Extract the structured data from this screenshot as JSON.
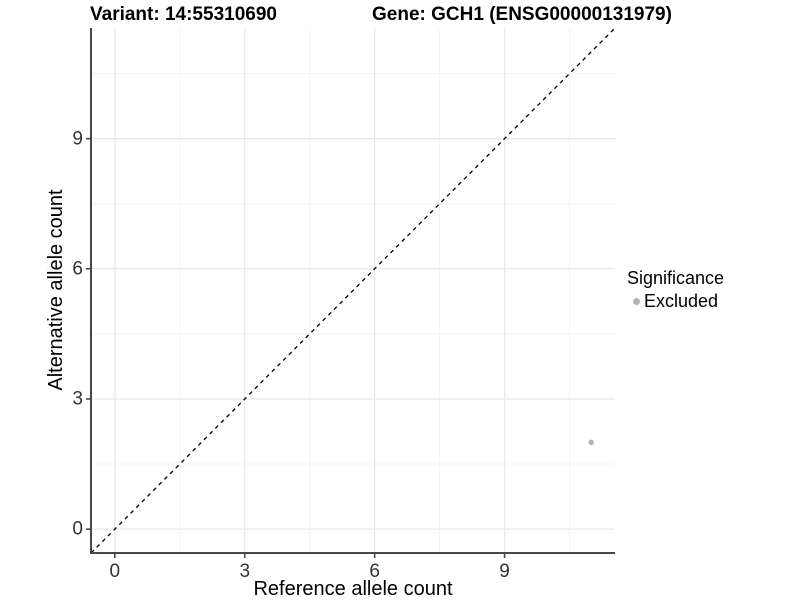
{
  "titles": {
    "variant": "Variant: 14:55310690",
    "gene": "Gene: GCH1 (ENSG00000131979)"
  },
  "chart_data": {
    "type": "scatter",
    "xlabel": "Reference allele count",
    "ylabel": "Alternative allele count",
    "xlim": [
      -0.55,
      11.55
    ],
    "ylim": [
      -0.55,
      11.55
    ],
    "x_ticks": [
      0,
      3,
      6,
      9
    ],
    "y_ticks": [
      0,
      3,
      6,
      9
    ],
    "x_minor_ticks": [
      1.5,
      4.5,
      7.5,
      10.5
    ],
    "y_minor_ticks": [
      1.5,
      4.5,
      7.5,
      10.5
    ],
    "grid": "major+minor",
    "reference_line": {
      "kind": "identity y=x",
      "style": "dashed",
      "color": "#000000"
    },
    "series": [
      {
        "name": "Excluded",
        "color": "#b3b3b3",
        "points": [
          {
            "x": 11,
            "y": 2
          }
        ]
      }
    ],
    "legend": {
      "title": "Significance",
      "position": "right",
      "entries": [
        {
          "label": "Excluded",
          "color": "#b3b3b3"
        }
      ]
    },
    "style": {
      "grid_major_color": "#e8e8e8",
      "grid_minor_color": "#f4f4f4",
      "axis_color": "#474747",
      "point_radius": 2.7,
      "background": "#ffffff"
    }
  }
}
